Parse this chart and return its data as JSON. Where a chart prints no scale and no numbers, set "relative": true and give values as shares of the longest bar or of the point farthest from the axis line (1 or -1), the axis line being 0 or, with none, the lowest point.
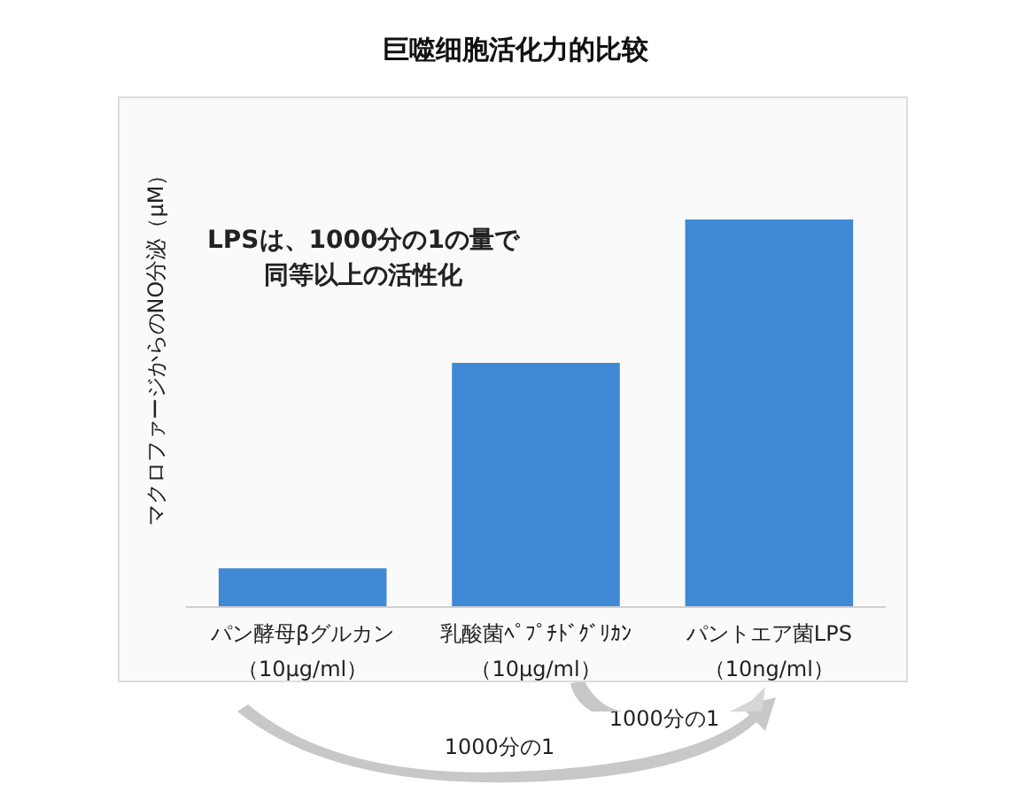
{
  "chart_data": {
    "type": "bar",
    "title": "巨噬细胞活化力的比较",
    "ylabel": "マクロファージからのNO分泌（μM）",
    "categories": [
      "パン酵母βグルカン（10μg/ml）",
      "乳酸菌ﾍﾟﾌﾟﾁﾄﾞｸﾞﾘｶﾝ（10μg/ml）",
      "パントエア菌LPS（10ng/ml）"
    ],
    "values": [
      0.1,
      0.63,
      1
    ],
    "relative": true,
    "color": "#4189d4",
    "annotations": [
      "LPSは、1000分の1の量で",
      "同等以上の活性化",
      "1000分の1",
      "1000分の1"
    ]
  }
}
